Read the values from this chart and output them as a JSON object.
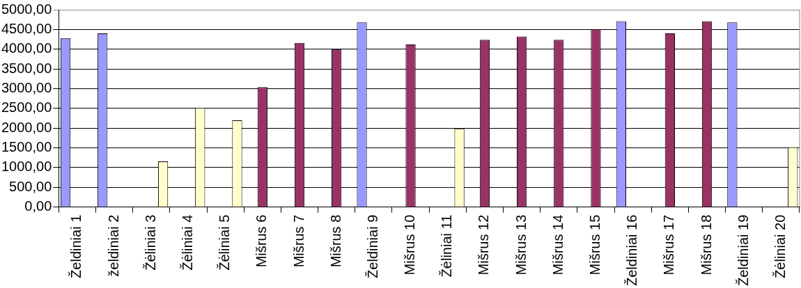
{
  "chart_data": {
    "type": "bar",
    "categories": [
      "Želdiniai 1",
      "želdiniai 2",
      "Žėliniai 3",
      "Žėliniai 4",
      "Žėliniai 5",
      "Mišrus 6",
      "Mišrus 7",
      "Mišrus 8",
      "Želdiniai 9",
      "Mišrus 10",
      "Žėliniai 11",
      "Mišrus 12",
      "Mišrus 13",
      "Mišrus 14",
      "Mišrus 15",
      "Želdiniai 16",
      "Mišrus 17",
      "Mišrus 18",
      "Želdiniai 19",
      "Žėliniai 20"
    ],
    "series": [
      {
        "color": "#9999ff",
        "values": [
          4280,
          4400,
          null,
          null,
          null,
          null,
          null,
          null,
          4680,
          null,
          null,
          null,
          null,
          null,
          null,
          4710,
          null,
          null,
          4680,
          null
        ]
      },
      {
        "color": "#993366",
        "values": [
          null,
          null,
          null,
          null,
          null,
          3040,
          4160,
          4000,
          null,
          4120,
          null,
          4240,
          4320,
          4240,
          4510,
          null,
          4400,
          4710,
          null,
          null
        ]
      },
      {
        "color": "#ffffcc",
        "values": [
          null,
          null,
          1160,
          2520,
          2200,
          null,
          null,
          null,
          null,
          null,
          1990,
          null,
          null,
          null,
          null,
          null,
          null,
          null,
          null,
          1520
        ]
      }
    ],
    "ylim": [
      0,
      5000
    ],
    "yticks": [
      {
        "value": 0,
        "label": "0,00"
      },
      {
        "value": 500,
        "label": "500,00"
      },
      {
        "value": 1000,
        "label": "1000,00"
      },
      {
        "value": 1500,
        "label": "1500,00"
      },
      {
        "value": 2000,
        "label": "2000,00"
      },
      {
        "value": 2500,
        "label": "2500,00"
      },
      {
        "value": 3000,
        "label": "3000,00"
      },
      {
        "value": 3500,
        "label": "3500,00"
      },
      {
        "value": 4000,
        "label": "4000,00"
      },
      {
        "value": 4500,
        "label": "4500,00"
      },
      {
        "value": 5000,
        "label": "5000,00"
      }
    ],
    "grid": "y",
    "legend": false
  }
}
